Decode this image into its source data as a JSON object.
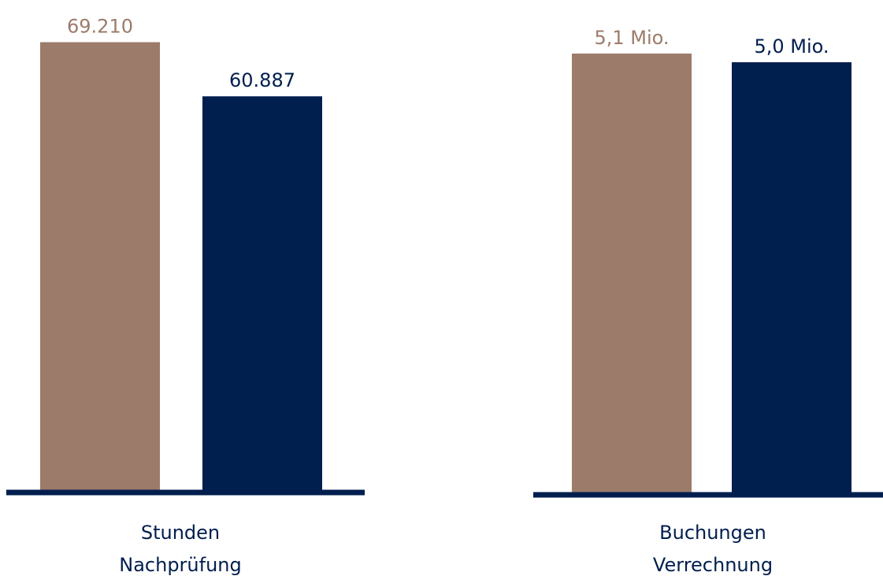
{
  "chart_data": [
    {
      "type": "bar",
      "values": [
        69210,
        60887
      ],
      "value_labels": [
        "69.210",
        "60.887"
      ],
      "colors": [
        "#9c7b6a",
        "#001e4e"
      ],
      "xlabel": [
        "Stunden",
        "Nachprüfung"
      ],
      "ylim": [
        0,
        70000
      ]
    },
    {
      "type": "bar",
      "values": [
        5100000,
        5000000
      ],
      "value_labels": [
        "5,1 Mio.",
        "5,0 Mio."
      ],
      "colors": [
        "#9c7b6a",
        "#001e4e"
      ],
      "xlabel": [
        "Buchungen",
        "Verrechnung"
      ],
      "ylim": [
        0,
        5200000
      ]
    }
  ]
}
